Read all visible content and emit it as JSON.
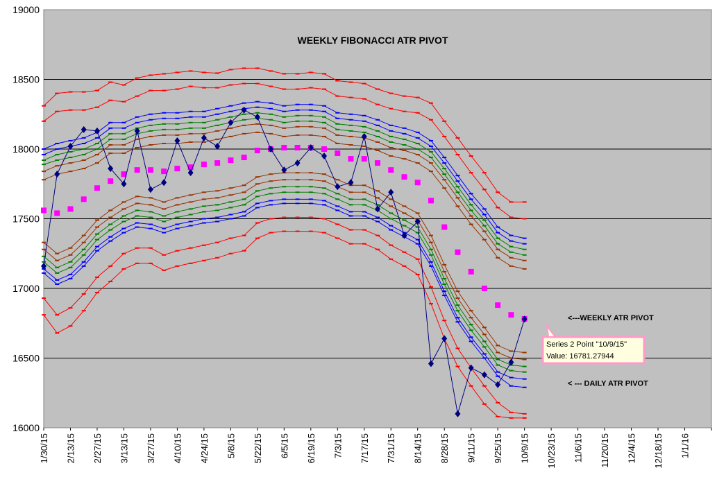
{
  "chart_data": {
    "type": "line",
    "title": "WEEKLY FIBONACCI ATR PIVOT",
    "ylim": [
      16000,
      19000
    ],
    "y_ticks": [
      16000,
      16500,
      17000,
      17500,
      18000,
      18500,
      19000
    ],
    "x_ticks": [
      "1/30/15",
      "2/13/15",
      "2/27/15",
      "3/13/15",
      "3/27/15",
      "4/10/15",
      "4/24/15",
      "5/8/15",
      "5/22/15",
      "6/5/15",
      "6/19/15",
      "7/3/15",
      "7/17/15",
      "7/31/15",
      "8/14/15",
      "8/28/15",
      "9/11/15",
      "9/25/15",
      "10/9/15",
      "10/23/15",
      "11/6/15",
      "11/20/15",
      "12/4/15",
      "12/18/15",
      "1/1/16"
    ],
    "x": [
      "1/30/15",
      "2/6/15",
      "2/13/15",
      "2/20/15",
      "2/27/15",
      "3/6/15",
      "3/13/15",
      "3/20/15",
      "3/27/15",
      "4/3/15",
      "4/10/15",
      "4/17/15",
      "4/24/15",
      "5/1/15",
      "5/8/15",
      "5/15/15",
      "5/22/15",
      "5/29/15",
      "6/5/15",
      "6/12/15",
      "6/19/15",
      "6/26/15",
      "7/3/15",
      "7/10/15",
      "7/17/15",
      "7/24/15",
      "7/31/15",
      "8/7/15",
      "8/14/15",
      "8/21/15",
      "8/28/15",
      "9/4/15",
      "9/11/15",
      "9/18/15",
      "9/25/15",
      "10/2/15",
      "10/9/15"
    ],
    "grid": true,
    "background": "#c0c0c0",
    "series": [
      {
        "role": "band",
        "color": "#ff0000",
        "values": [
          18310,
          18400,
          18410,
          18410,
          18420,
          18480,
          18460,
          18510,
          18530,
          18540,
          18550,
          18560,
          18550,
          18545,
          18570,
          18580,
          18580,
          18560,
          18540,
          18540,
          18550,
          18540,
          18490,
          18480,
          18470,
          18430,
          18400,
          18380,
          18370,
          18330,
          18200,
          18080,
          17950,
          17830,
          17690,
          17620,
          17620
        ]
      },
      {
        "role": "band",
        "color": "#ff0000",
        "values": [
          18200,
          18270,
          18280,
          18280,
          18300,
          18350,
          18340,
          18380,
          18420,
          18420,
          18430,
          18450,
          18440,
          18440,
          18460,
          18470,
          18470,
          18450,
          18430,
          18430,
          18440,
          18430,
          18380,
          18370,
          18360,
          18320,
          18290,
          18270,
          18260,
          18210,
          18090,
          17960,
          17830,
          17710,
          17580,
          17510,
          17500
        ]
      },
      {
        "role": "band",
        "color": "#0000ff",
        "values": [
          18000,
          18040,
          18060,
          18080,
          18120,
          18190,
          18190,
          18230,
          18250,
          18260,
          18260,
          18270,
          18270,
          18290,
          18310,
          18330,
          18340,
          18330,
          18310,
          18320,
          18320,
          18310,
          18260,
          18250,
          18240,
          18210,
          18170,
          18150,
          18120,
          18060,
          17940,
          17810,
          17680,
          17570,
          17440,
          17380,
          17360
        ]
      },
      {
        "role": "band",
        "color": "#0000ff",
        "values": [
          17960,
          18000,
          18020,
          18040,
          18080,
          18150,
          18150,
          18190,
          18210,
          18220,
          18220,
          18230,
          18230,
          18250,
          18270,
          18290,
          18300,
          18290,
          18270,
          18280,
          18280,
          18270,
          18220,
          18210,
          18200,
          18170,
          18130,
          18110,
          18080,
          18020,
          17900,
          17770,
          17640,
          17530,
          17400,
          17340,
          17320
        ]
      },
      {
        "role": "band",
        "color": "#008000",
        "values": [
          17920,
          17960,
          17980,
          18000,
          18040,
          18110,
          18110,
          18150,
          18170,
          18180,
          18180,
          18190,
          18190,
          18210,
          18230,
          18250,
          18260,
          18250,
          18230,
          18240,
          18240,
          18230,
          18180,
          18170,
          18160,
          18130,
          18090,
          18070,
          18040,
          17980,
          17860,
          17730,
          17600,
          17490,
          17360,
          17300,
          17280
        ]
      },
      {
        "role": "band",
        "color": "#008000",
        "values": [
          17890,
          17920,
          17940,
          17960,
          18000,
          18070,
          18070,
          18110,
          18130,
          18140,
          18140,
          18150,
          18150,
          18170,
          18190,
          18210,
          18220,
          18210,
          18190,
          18200,
          18200,
          18190,
          18140,
          18130,
          18120,
          18090,
          18050,
          18030,
          18000,
          17940,
          17820,
          17690,
          17560,
          17450,
          17320,
          17260,
          17240
        ]
      },
      {
        "role": "band",
        "color": "#993300",
        "values": [
          17840,
          17880,
          17900,
          17920,
          17960,
          18030,
          18030,
          18070,
          18090,
          18100,
          18100,
          18110,
          18110,
          18130,
          18150,
          18170,
          18180,
          18170,
          18150,
          18160,
          18160,
          18150,
          18100,
          18090,
          18080,
          18050,
          18010,
          17990,
          17960,
          17900,
          17780,
          17650,
          17520,
          17410,
          17280,
          17220,
          17200
        ]
      },
      {
        "role": "band",
        "color": "#993300",
        "values": [
          17780,
          17820,
          17840,
          17860,
          17900,
          17970,
          17970,
          18010,
          18030,
          18040,
          18040,
          18050,
          18050,
          18070,
          18090,
          18110,
          18120,
          18110,
          18090,
          18100,
          18100,
          18090,
          18040,
          18030,
          18020,
          17990,
          17950,
          17930,
          17900,
          17840,
          17720,
          17590,
          17460,
          17350,
          17220,
          17160,
          17140
        ]
      },
      {
        "role": "pivot",
        "name": "Series 2",
        "color": "#ff00ff",
        "values": [
          17560,
          17540,
          17570,
          17640,
          17720,
          17770,
          17820,
          17850,
          17850,
          17840,
          17860,
          17870,
          17890,
          17900,
          17920,
          17940,
          17990,
          18000,
          18010,
          18010,
          18010,
          18000,
          17970,
          17930,
          17930,
          17900,
          17850,
          17800,
          17760,
          17630,
          17440,
          17260,
          17120,
          17000,
          16880,
          16810,
          16781.28
        ]
      },
      {
        "role": "band",
        "color": "#993300",
        "values": [
          17330,
          17250,
          17290,
          17380,
          17490,
          17560,
          17620,
          17660,
          17650,
          17620,
          17650,
          17670,
          17690,
          17700,
          17720,
          17740,
          17800,
          17820,
          17830,
          17830,
          17830,
          17820,
          17780,
          17740,
          17740,
          17700,
          17640,
          17590,
          17540,
          17380,
          17170,
          16980,
          16840,
          16720,
          16590,
          16550,
          16540
        ]
      },
      {
        "role": "band",
        "color": "#993300",
        "values": [
          17280,
          17200,
          17240,
          17330,
          17440,
          17510,
          17570,
          17610,
          17600,
          17570,
          17600,
          17620,
          17640,
          17650,
          17670,
          17690,
          17750,
          17770,
          17780,
          17780,
          17780,
          17770,
          17730,
          17690,
          17690,
          17650,
          17590,
          17540,
          17490,
          17330,
          17120,
          16930,
          16790,
          16670,
          16540,
          16500,
          16490
        ]
      },
      {
        "role": "band",
        "color": "#008000",
        "values": [
          17230,
          17150,
          17190,
          17280,
          17390,
          17460,
          17520,
          17560,
          17550,
          17520,
          17550,
          17570,
          17590,
          17600,
          17620,
          17640,
          17700,
          17720,
          17730,
          17730,
          17730,
          17720,
          17680,
          17640,
          17640,
          17600,
          17540,
          17490,
          17440,
          17280,
          17070,
          16880,
          16740,
          16620,
          16490,
          16450,
          16440
        ]
      },
      {
        "role": "band",
        "color": "#008000",
        "values": [
          17190,
          17110,
          17150,
          17240,
          17350,
          17420,
          17480,
          17520,
          17510,
          17480,
          17510,
          17530,
          17550,
          17560,
          17580,
          17600,
          17660,
          17680,
          17690,
          17690,
          17690,
          17680,
          17640,
          17600,
          17600,
          17560,
          17500,
          17450,
          17400,
          17240,
          17030,
          16840,
          16700,
          16580,
          16450,
          16410,
          16400
        ]
      },
      {
        "role": "band",
        "color": "#0000ff",
        "values": [
          17140,
          17060,
          17100,
          17190,
          17300,
          17370,
          17430,
          17470,
          17460,
          17430,
          17460,
          17480,
          17500,
          17510,
          17530,
          17550,
          17610,
          17630,
          17640,
          17640,
          17640,
          17630,
          17590,
          17550,
          17550,
          17510,
          17450,
          17400,
          17350,
          17190,
          16980,
          16790,
          16650,
          16530,
          16400,
          16360,
          16350
        ]
      },
      {
        "role": "band",
        "color": "#0000ff",
        "values": [
          17110,
          17030,
          17070,
          17160,
          17270,
          17340,
          17400,
          17440,
          17430,
          17400,
          17430,
          17450,
          17470,
          17480,
          17500,
          17520,
          17580,
          17600,
          17610,
          17610,
          17610,
          17600,
          17560,
          17520,
          17520,
          17480,
          17420,
          17370,
          17320,
          17160,
          16950,
          16760,
          16620,
          16500,
          16370,
          16300,
          16290
        ]
      },
      {
        "role": "band",
        "color": "#ff0000",
        "values": [
          16930,
          16810,
          16860,
          16960,
          17080,
          17160,
          17250,
          17290,
          17290,
          17240,
          17270,
          17290,
          17310,
          17330,
          17360,
          17380,
          17470,
          17500,
          17510,
          17510,
          17510,
          17500,
          17460,
          17420,
          17420,
          17380,
          17310,
          17260,
          17210,
          17010,
          16770,
          16570,
          16430,
          16300,
          16180,
          16110,
          16100
        ]
      },
      {
        "role": "band",
        "color": "#ff0000",
        "values": [
          16810,
          16680,
          16730,
          16840,
          16970,
          17050,
          17140,
          17180,
          17180,
          17130,
          17160,
          17180,
          17200,
          17220,
          17250,
          17270,
          17360,
          17400,
          17410,
          17410,
          17410,
          17400,
          17360,
          17320,
          17320,
          17280,
          17210,
          17160,
          17100,
          16890,
          16640,
          16440,
          16300,
          16170,
          16080,
          16070,
          16070
        ]
      },
      {
        "role": "price",
        "color": "#000080",
        "values": [
          17160,
          17820,
          18020,
          18140,
          18130,
          17860,
          17750,
          18130,
          17710,
          17760,
          18060,
          17830,
          18080,
          18020,
          18190,
          18280,
          18230,
          18000,
          17850,
          17900,
          18010,
          17950,
          17730,
          17760,
          18090,
          17570,
          17690,
          17380,
          17480,
          16460,
          16640,
          16100,
          16430,
          16380,
          16310,
          16470,
          16780
        ]
      }
    ],
    "annotations": [
      {
        "text": "<---WEEKLY ATR PIVOT",
        "value": 16790
      },
      {
        "text": "< --- DAILY ATR PIVOT",
        "value": 16320
      }
    ],
    "tooltip": {
      "line1": "Series 2 Point \"10/9/15\"",
      "line2": "Value: 16781.27944"
    }
  }
}
